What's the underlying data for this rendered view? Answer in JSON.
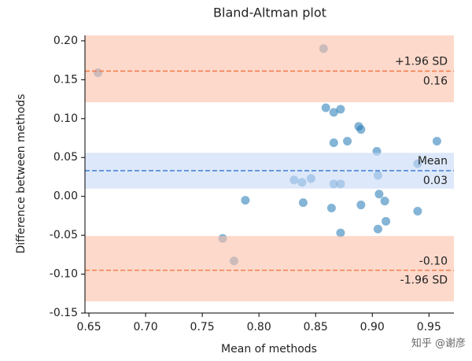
{
  "chart_data": {
    "type": "scatter",
    "title": "Bland-Altman plot",
    "x_label": "Mean of methods",
    "y_label": "Difference between methods",
    "series": [
      {
        "color": "#1f77b4",
        "x": [
          0.658,
          0.857,
          0.859,
          0.866,
          0.872,
          0.888,
          0.89,
          0.878,
          0.866,
          0.904,
          0.957,
          0.94,
          0.905,
          0.831,
          0.838,
          0.846,
          0.866,
          0.872,
          0.906,
          0.911,
          0.788,
          0.839,
          0.864,
          0.89,
          0.94,
          0.872,
          0.905,
          0.912,
          0.768,
          0.778
        ],
        "values": [
          0.159,
          0.19,
          0.114,
          0.108,
          0.112,
          0.09,
          0.086,
          0.071,
          0.069,
          0.058,
          0.071,
          0.042,
          0.027,
          0.021,
          0.018,
          0.023,
          0.016,
          0.016,
          0.003,
          -0.006,
          -0.005,
          -0.008,
          -0.015,
          -0.011,
          -0.019,
          -0.047,
          -0.042,
          -0.032,
          -0.054,
          -0.083
        ]
      }
    ],
    "bands": [
      {
        "lower": 0.121,
        "upper": 0.207,
        "color": "#fcbfa8"
      },
      {
        "lower": 0.01,
        "upper": 0.056,
        "color": "#c6d8f7"
      },
      {
        "lower": -0.135,
        "upper": -0.051,
        "color": "#fcbfa8"
      }
    ],
    "hlines": [
      {
        "name": "+1.96 SD",
        "value": 0.161,
        "value_label": "0.16",
        "color": "#f07f4f"
      },
      {
        "name": "Mean",
        "value": 0.033,
        "value_label": "0.03",
        "color": "#4a86d8"
      },
      {
        "name": "-1.96 SD",
        "value": -0.095,
        "value_label": "-0.10",
        "color": "#f07f4f"
      }
    ],
    "xlim": [
      0.6465,
      0.972
    ],
    "ylim": [
      -0.15,
      0.207
    ],
    "xticks": [
      {
        "value": 0.65,
        "label": "0.65"
      },
      {
        "value": 0.7,
        "label": "0.70"
      },
      {
        "value": 0.75,
        "label": "0.75"
      },
      {
        "value": 0.8,
        "label": "0.80"
      },
      {
        "value": 0.85,
        "label": "0.85"
      },
      {
        "value": 0.9,
        "label": "0.90"
      },
      {
        "value": 0.95,
        "label": "0.95"
      }
    ],
    "yticks": [
      {
        "value": 0.2,
        "label": "0.20"
      },
      0.15,
      {
        "value": 0.1,
        "label": "0.10"
      },
      0.05,
      {
        "value": 0,
        "label": "0.00"
      },
      -0.05,
      {
        "value": -0.1,
        "label": "-0.10"
      },
      -0.15
    ],
    "watermark": "知乎 @谢彦"
  }
}
